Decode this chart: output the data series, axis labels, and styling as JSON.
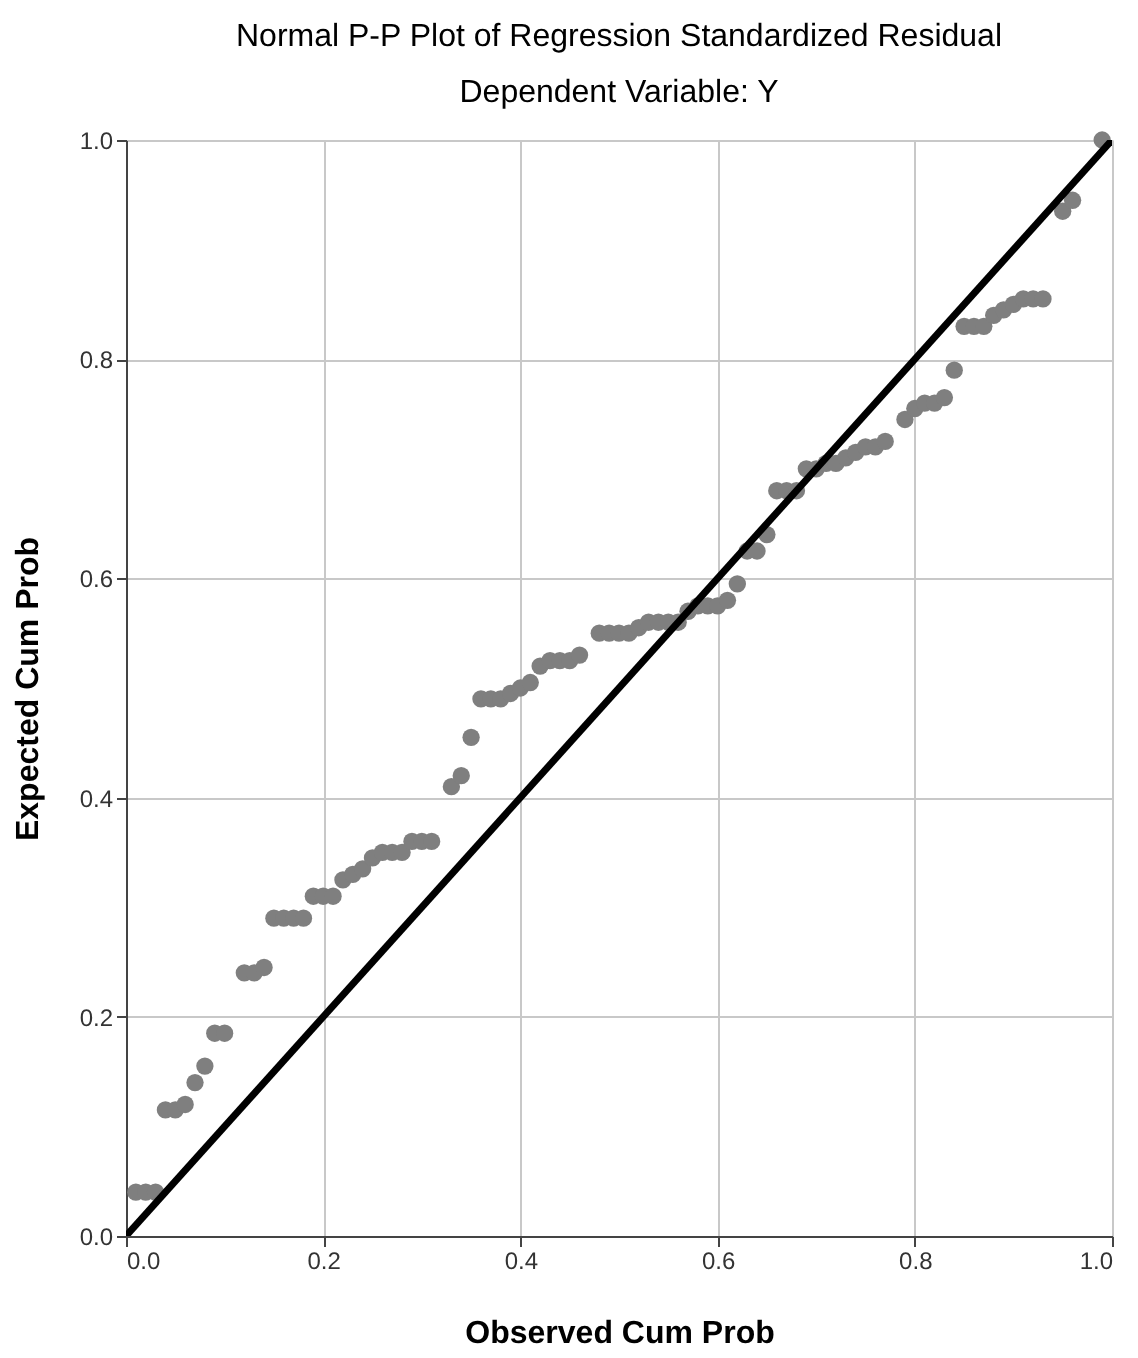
{
  "chart_data": {
    "type": "scatter",
    "title": "Normal P-P Plot of Regression Standardized Residual",
    "subtitle": "Dependent Variable: Y",
    "xlabel": "Observed Cum Prob",
    "ylabel": "Expected Cum Prob",
    "xlim": [
      0,
      1
    ],
    "ylim": [
      0,
      1
    ],
    "xticks": [
      {
        "value": 0,
        "label": "0.0"
      },
      0.2,
      0.4,
      0.6,
      0.8,
      {
        "value": 1,
        "label": "1.0"
      }
    ],
    "yticks": [
      {
        "value": 0,
        "label": "0.0"
      },
      0.2,
      0.4,
      0.6,
      0.8,
      {
        "value": 1,
        "label": "1.0"
      }
    ],
    "grid": true,
    "series": [
      {
        "color": "#7f7f7f",
        "marker": "circle",
        "x": [
          0.01,
          0.02,
          0.03,
          0.04,
          0.05,
          0.06,
          0.07,
          0.08,
          0.09,
          0.1,
          0.12,
          0.13,
          0.14,
          0.15,
          0.16,
          0.17,
          0.18,
          0.19,
          0.2,
          0.21,
          0.22,
          0.23,
          0.24,
          0.25,
          0.26,
          0.27,
          0.28,
          0.29,
          0.3,
          0.31,
          0.33,
          0.34,
          0.35,
          0.36,
          0.37,
          0.38,
          0.39,
          0.4,
          0.41,
          0.42,
          0.43,
          0.44,
          0.45,
          0.46,
          0.48,
          0.49,
          0.5,
          0.51,
          0.52,
          0.53,
          0.54,
          0.55,
          0.56,
          0.57,
          0.58,
          0.59,
          0.6,
          0.61,
          0.62,
          0.63,
          0.64,
          0.65,
          0.66,
          0.67,
          0.68,
          0.69,
          0.7,
          0.71,
          0.72,
          0.73,
          0.74,
          0.75,
          0.76,
          0.77,
          0.79,
          0.8,
          0.81,
          0.82,
          0.83,
          0.84,
          0.85,
          0.86,
          0.87,
          0.88,
          0.89,
          0.9,
          0.91,
          0.92,
          0.93,
          0.95,
          0.96,
          0.99
        ],
        "values": [
          0.04,
          0.04,
          0.04,
          0.115,
          0.115,
          0.12,
          0.14,
          0.155,
          0.185,
          0.185,
          0.24,
          0.24,
          0.245,
          0.29,
          0.29,
          0.29,
          0.29,
          0.31,
          0.31,
          0.31,
          0.325,
          0.33,
          0.335,
          0.345,
          0.35,
          0.35,
          0.35,
          0.36,
          0.36,
          0.36,
          0.41,
          0.42,
          0.455,
          0.49,
          0.49,
          0.49,
          0.495,
          0.5,
          0.505,
          0.52,
          0.525,
          0.525,
          0.525,
          0.53,
          0.55,
          0.55,
          0.55,
          0.55,
          0.555,
          0.56,
          0.56,
          0.56,
          0.56,
          0.57,
          0.575,
          0.575,
          0.575,
          0.58,
          0.595,
          0.625,
          0.625,
          0.64,
          0.68,
          0.68,
          0.68,
          0.7,
          0.7,
          0.705,
          0.705,
          0.71,
          0.715,
          0.72,
          0.72,
          0.725,
          0.745,
          0.755,
          0.76,
          0.76,
          0.765,
          0.79,
          0.83,
          0.83,
          0.83,
          0.84,
          0.845,
          0.85,
          0.855,
          0.855,
          0.855,
          0.935,
          0.945,
          1.0
        ]
      },
      {
        "type": "line",
        "color": "#000000",
        "marker": "none",
        "line_style": "solid",
        "x": [
          0,
          1
        ],
        "values": [
          0,
          1
        ]
      }
    ]
  }
}
